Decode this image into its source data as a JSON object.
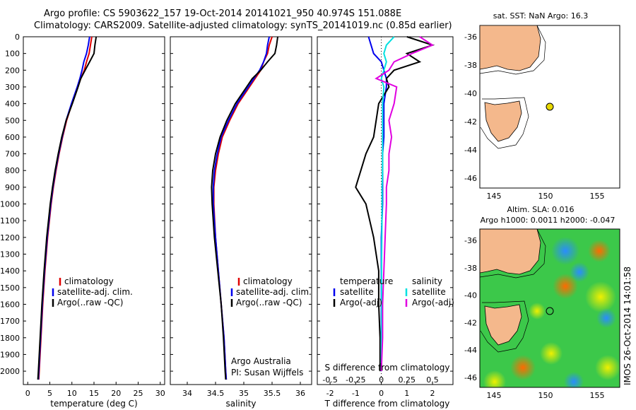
{
  "header": {
    "line1": "Argo profile: CS 5903622_157 19-Oct-2014 20141021_950 40.974S 151.088E",
    "line2": "Climatology: CARS2009. Satellite-adjusted climatology: synTS_20141019.nc (0.85d earlier)"
  },
  "colors": {
    "climatology": "#e00000",
    "satellite": "#0000ee",
    "argo": "#000000",
    "sat_s": "#00e0e0",
    "argo_s": "#e000e0",
    "land": "#f4b88c"
  },
  "chart_data": [
    {
      "type": "line",
      "xlabel": "temperature (deg C)",
      "xlim": [
        -1,
        31
      ],
      "xticks": [
        "0",
        "5",
        "10",
        "15",
        "20",
        "25",
        "30"
      ],
      "ylim": [
        0,
        2080
      ],
      "yticks": [
        "0",
        "100",
        "200",
        "300",
        "400",
        "500",
        "600",
        "700",
        "800",
        "900",
        "1000",
        "1100",
        "1200",
        "1300",
        "1400",
        "1500",
        "1600",
        "1700",
        "1800",
        "1900",
        "2000"
      ],
      "depth": [
        0,
        50,
        100,
        150,
        200,
        250,
        300,
        400,
        500,
        600,
        700,
        800,
        900,
        1000,
        1200,
        1400,
        1600,
        1800,
        2000,
        2050
      ],
      "series": [
        {
          "name": "climatology",
          "values": [
            14.5,
            14.2,
            13.9,
            13.3,
            12.8,
            12.0,
            11.3,
            10.0,
            8.8,
            7.9,
            7.1,
            6.4,
            5.8,
            5.3,
            4.5,
            3.9,
            3.4,
            3.0,
            2.6,
            2.5
          ]
        },
        {
          "name": "satellite-adj. clim.",
          "values": [
            14.0,
            13.7,
            13.3,
            12.7,
            12.3,
            11.8,
            11.2,
            9.9,
            8.7,
            7.8,
            7.0,
            6.3,
            5.7,
            5.2,
            4.4,
            3.8,
            3.3,
            2.9,
            2.5,
            2.4
          ]
        },
        {
          "name": "Argo(..raw -QC)",
          "values": [
            15.5,
            15.2,
            15.0,
            14.0,
            13.0,
            12.0,
            11.4,
            10.1,
            8.7,
            7.7,
            6.9,
            6.2,
            5.6,
            5.1,
            4.3,
            3.7,
            3.2,
            2.8,
            2.4,
            2.3
          ]
        }
      ],
      "legend": [
        "climatology",
        "satellite-adj. clim.",
        "Argo(..raw -QC)"
      ]
    },
    {
      "type": "line",
      "xlabel": "salinity",
      "xlim": [
        33.7,
        36.2
      ],
      "xticks": [
        "34",
        "34.5",
        "35",
        "35.5",
        "36"
      ],
      "depth": [
        0,
        50,
        100,
        150,
        200,
        250,
        300,
        400,
        500,
        600,
        700,
        800,
        900,
        1000,
        1200,
        1400,
        1600,
        1800,
        2000,
        2050
      ],
      "series": [
        {
          "name": "climatology",
          "values": [
            35.5,
            35.45,
            35.42,
            35.35,
            35.3,
            35.2,
            35.1,
            34.9,
            34.75,
            34.62,
            34.55,
            34.5,
            34.47,
            34.47,
            34.5,
            34.55,
            34.6,
            34.65,
            34.68,
            34.69
          ]
        },
        {
          "name": "satellite-adj. clim.",
          "values": [
            35.45,
            35.42,
            35.4,
            35.35,
            35.28,
            35.18,
            35.08,
            34.88,
            34.73,
            34.6,
            34.53,
            34.48,
            34.46,
            34.46,
            34.5,
            34.55,
            34.6,
            34.65,
            34.68,
            34.69
          ]
        },
        {
          "name": "Argo(..raw -QC)",
          "values": [
            35.6,
            35.58,
            35.55,
            35.42,
            35.3,
            35.15,
            35.05,
            34.85,
            34.7,
            34.58,
            34.5,
            34.45,
            34.43,
            34.44,
            34.48,
            34.54,
            34.6,
            34.64,
            34.67,
            34.68
          ]
        }
      ],
      "legend": [
        "climatology",
        "satellite-adj. clim.",
        "Argo(..raw -QC)"
      ],
      "annotation": [
        "Argo Australia",
        "PI: Susan Wijffels"
      ]
    },
    {
      "type": "line",
      "xlabel": "T difference from climatology",
      "xlabel_top": "S difference from climatology",
      "xlim": [
        -2.5,
        2.8
      ],
      "xticks": [
        "-2",
        "-1",
        "0",
        "1",
        "2"
      ],
      "xticks_top": [
        "-0.5",
        "-0.25",
        "0",
        "0.25",
        "0.5"
      ],
      "depth": [
        0,
        50,
        100,
        150,
        200,
        250,
        300,
        400,
        500,
        600,
        700,
        800,
        900,
        1000,
        1200,
        1400,
        1600,
        1800,
        2000
      ],
      "series": [
        {
          "name": "temperature satellite",
          "values": [
            -0.5,
            -0.4,
            -0.3,
            0.0,
            0.1,
            0.2,
            0.2,
            0.1,
            0.1,
            0.1,
            0.05,
            0.05,
            0.05,
            0.05,
            0.0,
            0.0,
            0.0,
            0.0,
            0.0
          ]
        },
        {
          "name": "temperature Argo(-adj)",
          "values": [
            1.0,
            2.0,
            1.0,
            1.5,
            0.5,
            0.2,
            0.3,
            -0.1,
            -0.2,
            -0.3,
            -0.6,
            -0.8,
            -1.0,
            -0.6,
            -0.3,
            -0.1,
            -0.1,
            -0.05,
            -0.05
          ]
        },
        {
          "name": "salinity satellite",
          "values": [
            0.5,
            0.2,
            0.1,
            0.2,
            0.1,
            0.0,
            0.1,
            0.05,
            0.05,
            0.05,
            0.05,
            0.05,
            0.03,
            0.03,
            0.02,
            0.01,
            0.01,
            0.0,
            0.0
          ]
        },
        {
          "name": "salinity Argo(-adj)",
          "values": [
            1.5,
            2.0,
            1.2,
            0.5,
            0.3,
            -0.2,
            0.6,
            0.5,
            0.3,
            0.4,
            0.3,
            0.3,
            0.2,
            0.2,
            0.15,
            0.1,
            0.05,
            0.05,
            0.0
          ]
        }
      ],
      "legend_left": [
        "temperature",
        "satellite",
        "Argo(-adj)"
      ],
      "legend_right": [
        "salinity",
        "satellite",
        "Argo(-adj)"
      ]
    }
  ],
  "maps": {
    "top": {
      "title": "sat. SST: NaN Argo: 16.3",
      "yticks": [
        "-36",
        "-38",
        "-40",
        "-42",
        "-44",
        "-46"
      ],
      "xticks": [
        "145",
        "150",
        "155"
      ]
    },
    "bottom": {
      "title1": "Altim. SLA: 0.016",
      "title2": "Argo h1000: 0.0011 h2000: -0.047",
      "yticks": [
        "-36",
        "-38",
        "-40",
        "-42",
        "-44",
        "-46"
      ],
      "xticks": [
        "145",
        "150",
        "155"
      ]
    }
  },
  "footer": {
    "stamp": "IMOS 26-Oct-2014 14:01:58"
  }
}
